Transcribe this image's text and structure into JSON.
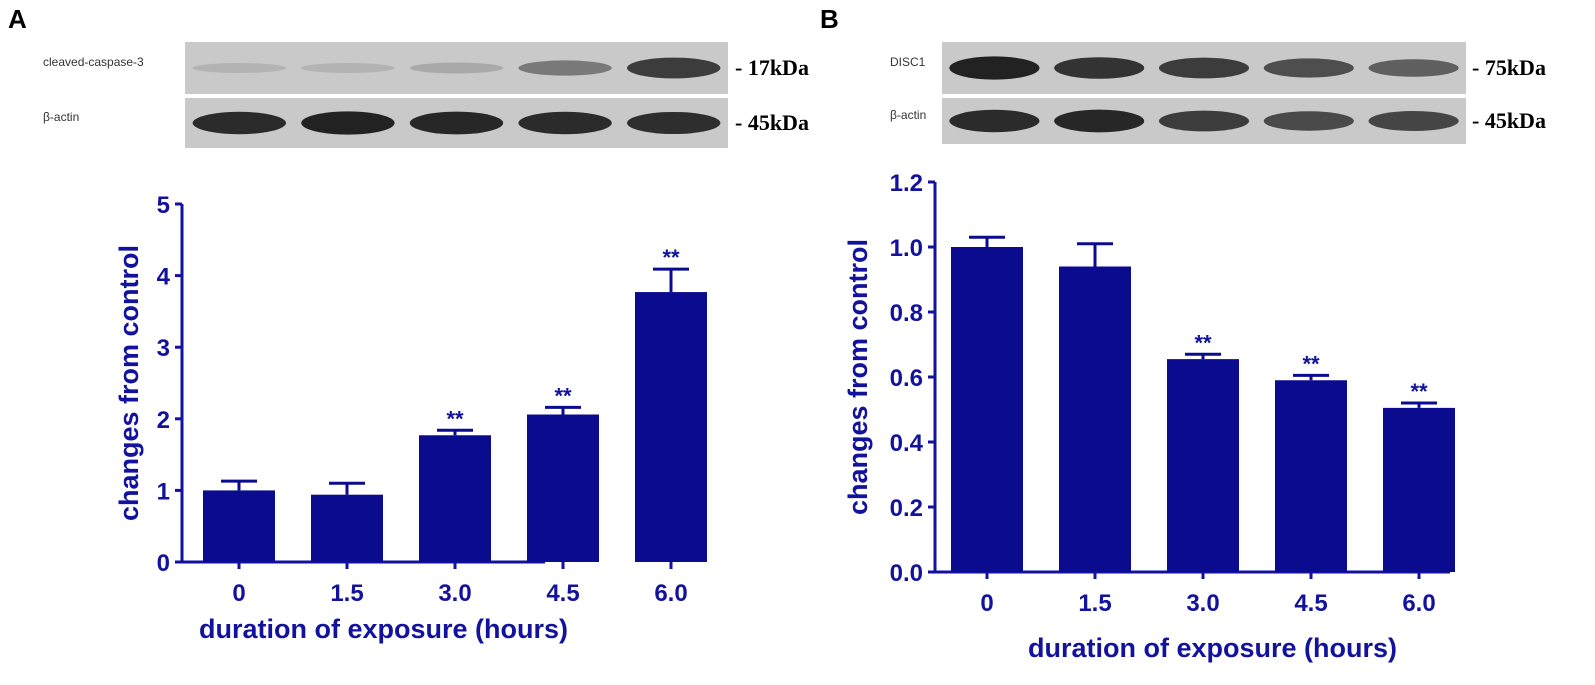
{
  "colors": {
    "bar": "#0b0b8f",
    "axis": "#12129e",
    "text": "#12129e"
  },
  "panels": [
    {
      "letter": "A",
      "blot": {
        "rows": [
          {
            "label": "cleaved-caspase-3",
            "kda": "- 17kDa",
            "intensity": [
              0.12,
              0.12,
              0.18,
              0.45,
              0.8
            ]
          },
          {
            "label": "β-actin",
            "kda": "- 45kDa",
            "intensity": [
              0.9,
              0.95,
              0.92,
              0.9,
              0.88
            ]
          }
        ]
      },
      "chart_data": {
        "type": "bar",
        "categories": [
          "0",
          "1.5",
          "3.0",
          "4.5",
          "6.0"
        ],
        "values": [
          1.0,
          0.94,
          1.77,
          2.06,
          3.77
        ],
        "errors": [
          0.13,
          0.16,
          0.07,
          0.1,
          0.32
        ],
        "significance": [
          "",
          "",
          "**",
          "**",
          "**"
        ],
        "xlabel": "duration of exposure (hours)",
        "ylabel": "changes from control",
        "ylim": [
          0,
          5
        ],
        "yticks": [
          "0",
          "1",
          "2",
          "3",
          "4",
          "5"
        ]
      }
    },
    {
      "letter": "B",
      "blot": {
        "rows": [
          {
            "label": "DISC1",
            "kda": "- 75kDa",
            "intensity": [
              0.95,
              0.85,
              0.8,
              0.7,
              0.6
            ]
          },
          {
            "label": "β-actin",
            "kda": "- 45kDa",
            "intensity": [
              0.9,
              0.92,
              0.8,
              0.72,
              0.75
            ]
          }
        ]
      },
      "chart_data": {
        "type": "bar",
        "categories": [
          "0",
          "1.5",
          "3.0",
          "4.5",
          "6.0"
        ],
        "values": [
          1.0,
          0.94,
          0.655,
          0.59,
          0.505
        ],
        "errors": [
          0.03,
          0.07,
          0.015,
          0.015,
          0.015
        ],
        "significance": [
          "",
          "",
          "**",
          "**",
          "**"
        ],
        "xlabel": "duration of exposure (hours)",
        "ylabel": "changes from control",
        "ylim": [
          0,
          1.2
        ],
        "yticks": [
          "0.0",
          "0.2",
          "0.4",
          "0.6",
          "0.8",
          "1.0",
          "1.2"
        ]
      }
    }
  ]
}
